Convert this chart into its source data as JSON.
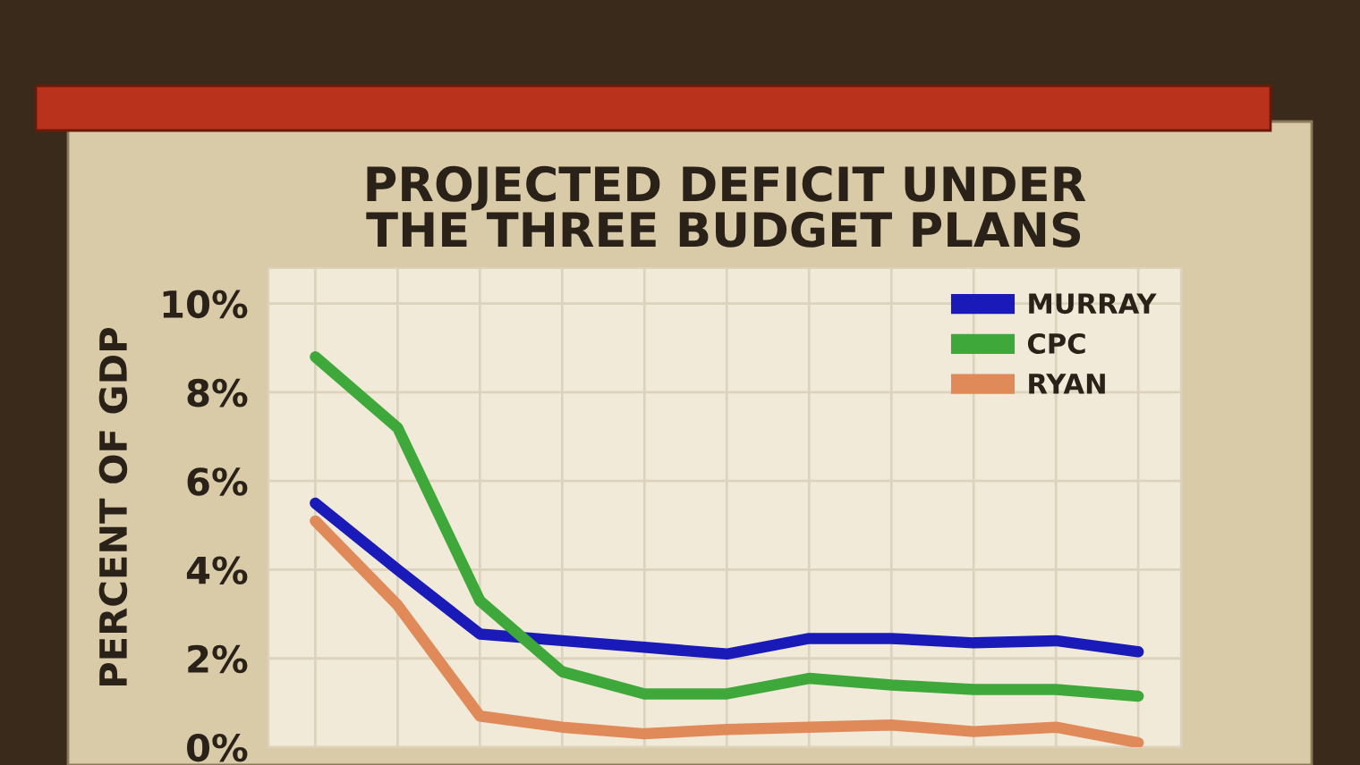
{
  "chart_data": {
    "type": "line",
    "title": "PROJECTED DEFICIT UNDER\nTHE THREE BUDGET PLANS",
    "ylabel": "PERCENT OF GDP",
    "categories": [
      null,
      null,
      null,
      null,
      null,
      null,
      null,
      null,
      null,
      null,
      null
    ],
    "series": [
      {
        "name": "MURRAY",
        "color": "#1a1ab8",
        "values": [
          5.5,
          4.0,
          2.55,
          2.4,
          2.25,
          2.1,
          2.45,
          2.45,
          2.35,
          2.4,
          2.15
        ]
      },
      {
        "name": "CPC",
        "color": "#3fa83a",
        "values": [
          8.8,
          7.2,
          3.3,
          1.7,
          1.2,
          1.2,
          1.55,
          1.4,
          1.3,
          1.3,
          1.15
        ]
      },
      {
        "name": "RYAN",
        "color": "#e08a5a",
        "values": [
          5.1,
          3.2,
          0.7,
          0.45,
          0.3,
          0.4,
          0.45,
          0.5,
          0.35,
          0.45,
          0.1
        ]
      }
    ],
    "ylim": [
      0,
      10.8
    ],
    "yticks": [
      {
        "value": 0,
        "label": "0%"
      },
      {
        "value": 2,
        "label": "2%"
      },
      {
        "value": 4,
        "label": "4%"
      },
      {
        "value": 6,
        "label": "6%"
      },
      {
        "value": 8,
        "label": "8%"
      },
      {
        "value": 10,
        "label": "10%"
      }
    ],
    "grid": true,
    "legend": "top right",
    "marker": "none",
    "line_style": "solid"
  }
}
